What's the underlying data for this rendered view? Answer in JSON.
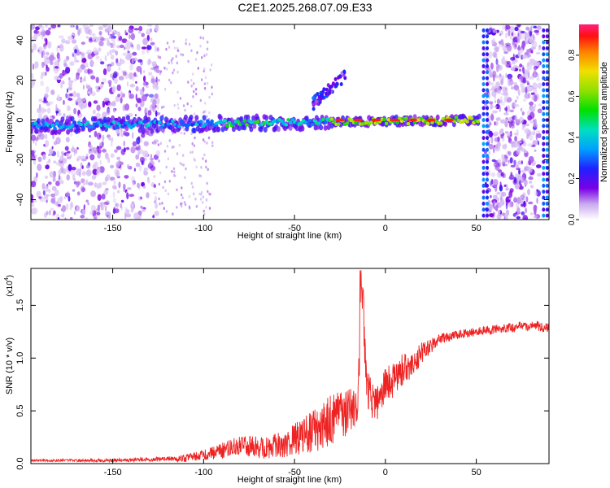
{
  "page_title": "C2E1.2025.268.07.09.E33",
  "chart_data": [
    {
      "type": "heatmap",
      "title": "C2E1.2025.268.07.09.E33",
      "xlabel": "Height of straight line (km)",
      "ylabel": "Frequency (Hz)",
      "xlim": [
        -195,
        90
      ],
      "ylim": [
        -50,
        48
      ],
      "xticks": [
        -150,
        -100,
        -50,
        0,
        50
      ],
      "yticks": [
        -40,
        -20,
        0,
        20,
        40
      ],
      "colorbar": {
        "label": "Normalized spectral amplitude",
        "range": [
          0.0,
          0.95
        ],
        "ticks": [
          0.0,
          0.2,
          0.4,
          0.6,
          0.8
        ]
      },
      "features": [
        {
          "name": "broadband noise band",
          "x_range": [
            -195,
            -125
          ],
          "f_range": [
            -50,
            48
          ],
          "amplitude": 0.15
        },
        {
          "name": "main signal trace",
          "x_start": -195,
          "x_end": 52,
          "f_center_start": -3,
          "f_center_end": 0,
          "amplitude_peak": 0.95
        },
        {
          "name": "upper branch",
          "x_range": [
            -40,
            -22
          ],
          "f_range": [
            8,
            22
          ],
          "amplitude": 0.25
        },
        {
          "name": "noise burst near boundary",
          "x_range": [
            55,
            85
          ],
          "f_range": [
            -50,
            48
          ],
          "amplitude": 0.15
        }
      ]
    },
    {
      "type": "line",
      "xlabel": "Height of straight line (km)",
      "ylabel": "SNR (10 * v/v)",
      "multiplier_label": "(x10",
      "multiplier_exponent": "4",
      "multiplier_close": ")",
      "xlim": [
        -195,
        90
      ],
      "ylim": [
        0.0,
        1.85
      ],
      "xticks": [
        -150,
        -100,
        -50,
        0,
        50
      ],
      "yticks": [
        0.0,
        0.5,
        1.0,
        1.5
      ],
      "ytick_labels": [
        "0.0",
        "0.5",
        "1.0",
        "1.5"
      ],
      "series": [
        {
          "name": "SNR",
          "color": "#ee2222",
          "x": [
            -195,
            -150,
            -110,
            -90,
            -80,
            -70,
            -60,
            -50,
            -40,
            -30,
            -20,
            -15,
            -13,
            -10,
            -5,
            0,
            5,
            10,
            15,
            20,
            25,
            30,
            40,
            50,
            60,
            70,
            80,
            90
          ],
          "y": [
            0.03,
            0.03,
            0.05,
            0.12,
            0.18,
            0.15,
            0.17,
            0.22,
            0.3,
            0.4,
            0.5,
            0.6,
            1.65,
            0.7,
            0.55,
            0.75,
            0.8,
            0.9,
            0.95,
            1.05,
            1.12,
            1.18,
            1.22,
            1.25,
            1.27,
            1.29,
            1.31,
            1.29
          ],
          "noise_envelope": [
            [
              -195,
              0.01
            ],
            [
              -120,
              0.02
            ],
            [
              -100,
              0.05
            ],
            [
              -80,
              0.1
            ],
            [
              -60,
              0.12
            ],
            [
              -40,
              0.2
            ],
            [
              -30,
              0.25
            ],
            [
              -20,
              0.22
            ],
            [
              -10,
              0.2
            ],
            [
              0,
              0.18
            ],
            [
              10,
              0.15
            ],
            [
              20,
              0.1
            ],
            [
              30,
              0.05
            ],
            [
              50,
              0.04
            ],
            [
              90,
              0.05
            ]
          ]
        }
      ]
    }
  ]
}
